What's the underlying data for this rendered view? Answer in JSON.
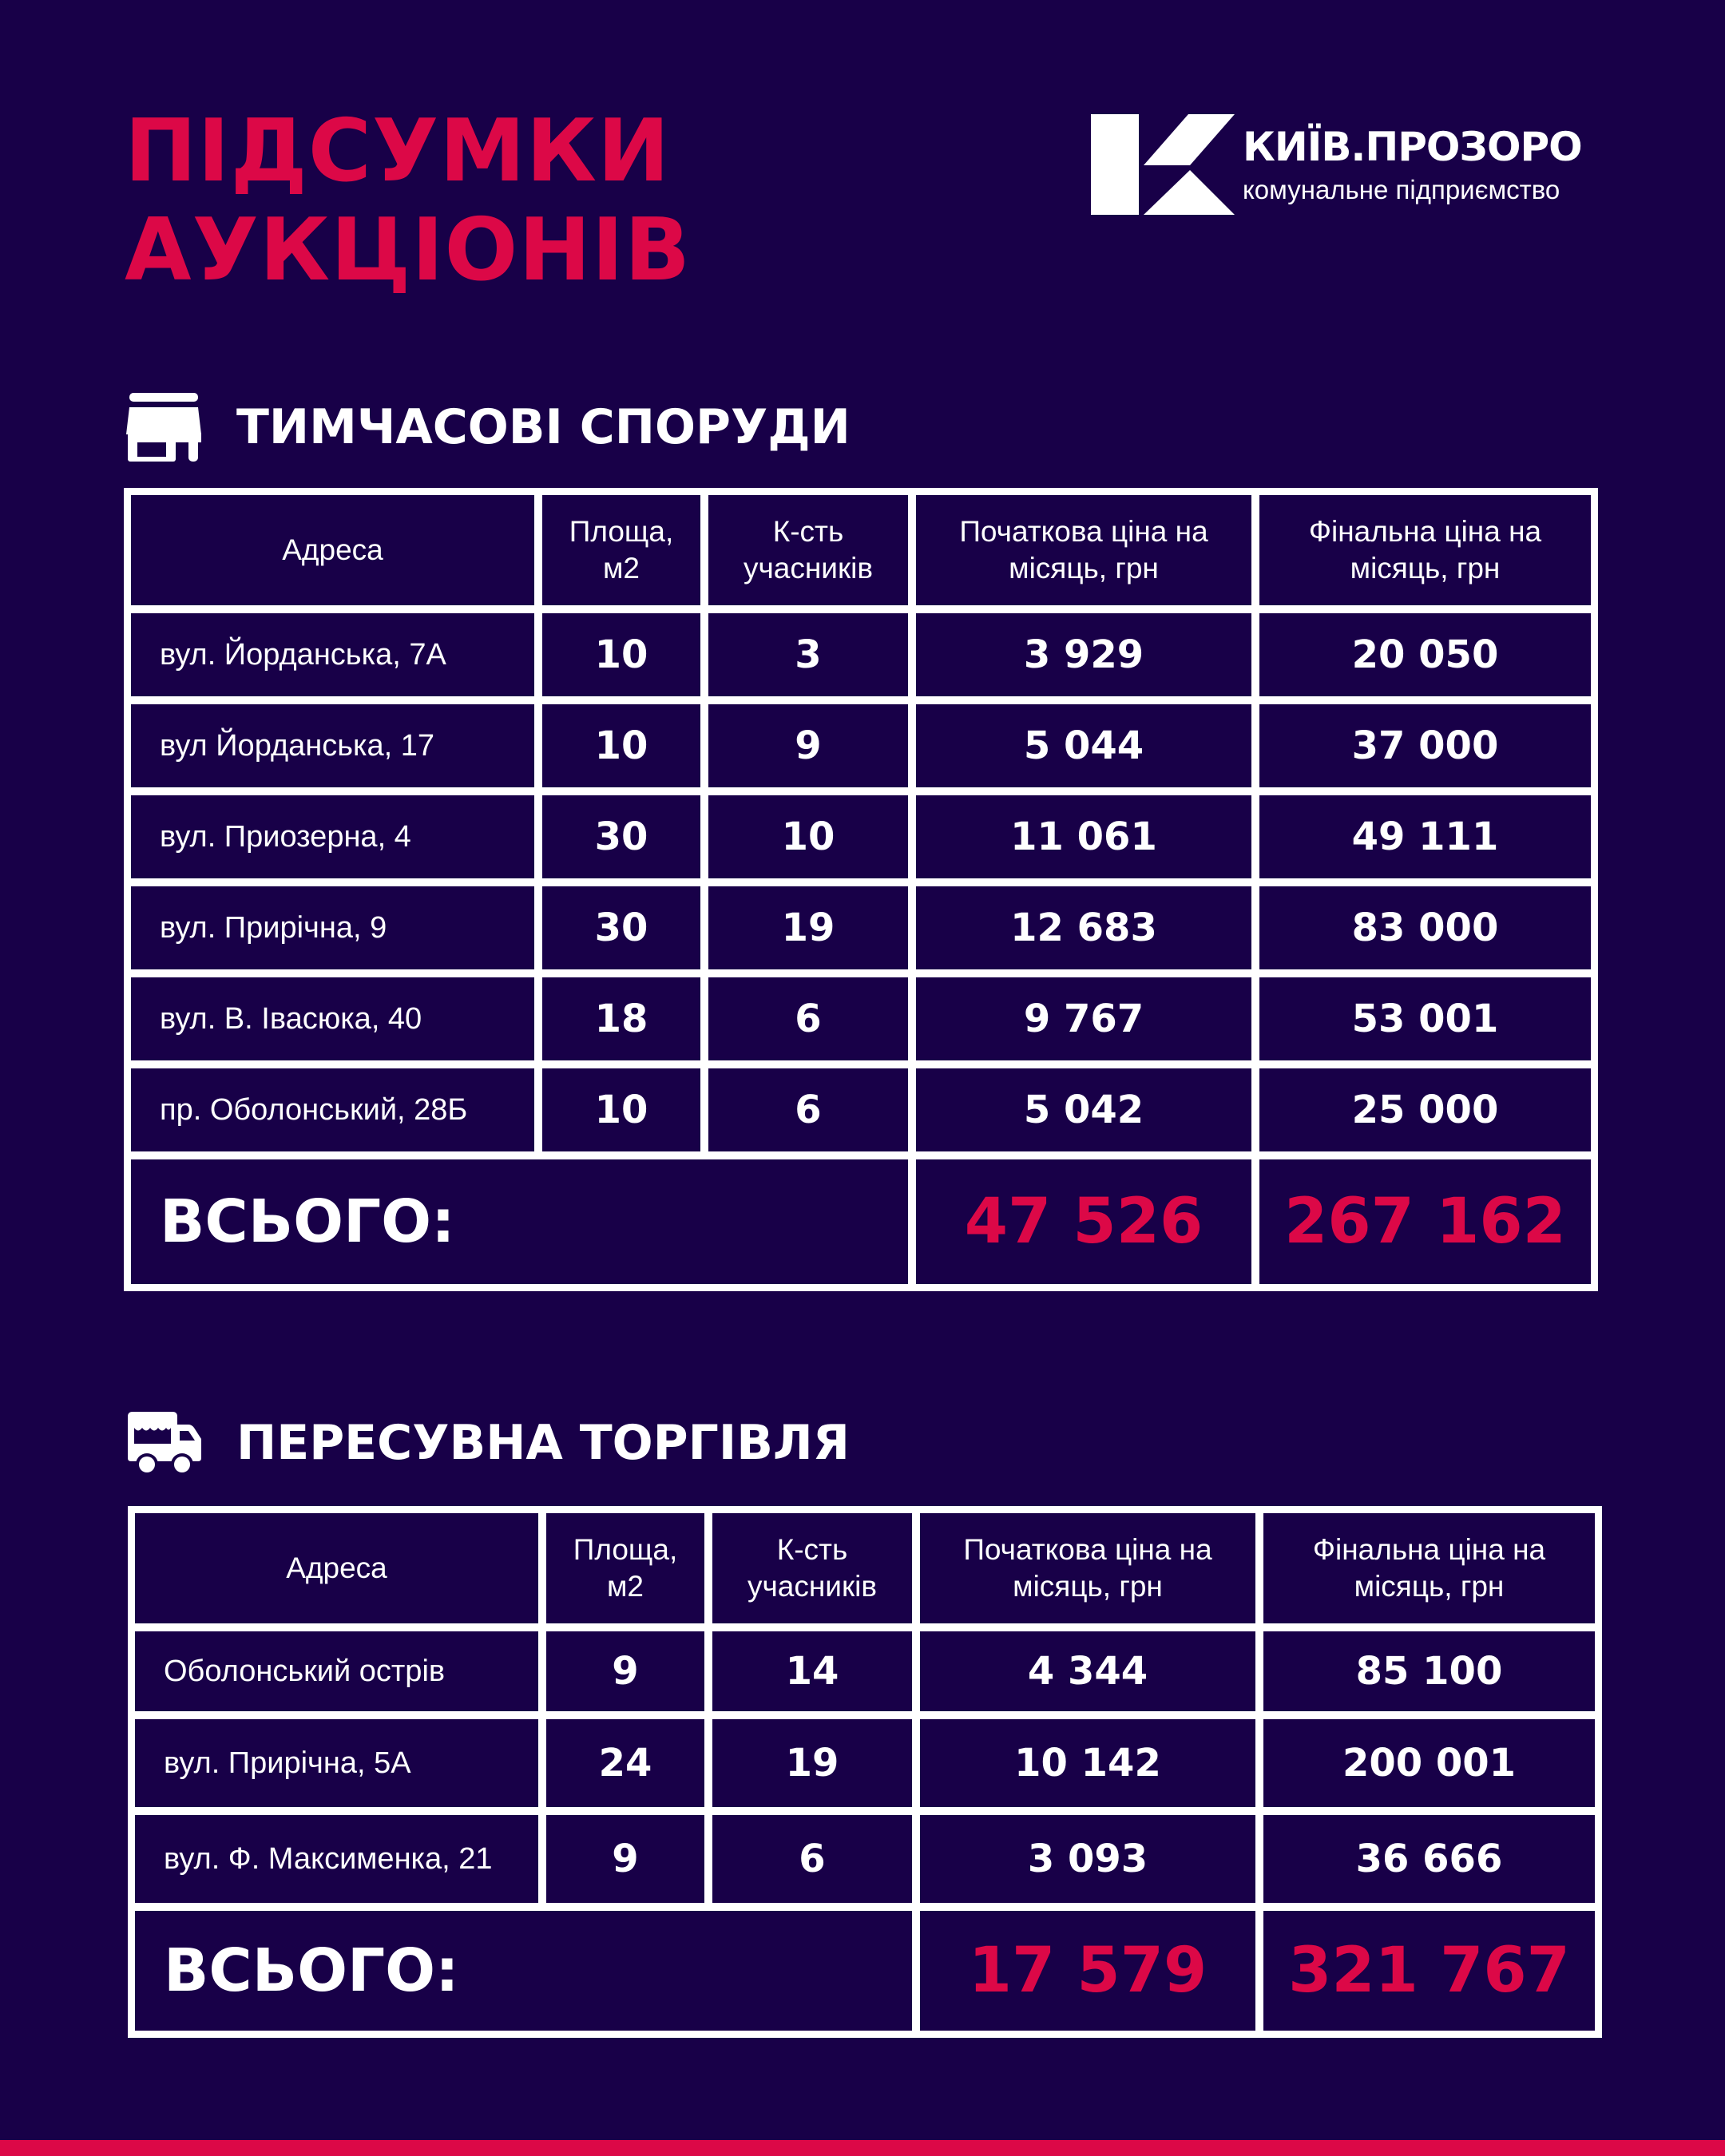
{
  "title": {
    "line1": "ПІДСУМКИ",
    "line2": "АУКЦІОНІВ"
  },
  "logo": {
    "name": "КИЇВ.ПРОЗОРО",
    "subtitle": "комунальне підприємство"
  },
  "colors": {
    "background": "#180048",
    "accent": "#dc0847",
    "text": "#ffffff"
  },
  "columns": [
    "Адреса",
    "Площа, м2",
    "К-сть учасників",
    "Початкова ціна на місяць, грн",
    "Фінальна ціна на місяць, грн"
  ],
  "sections": [
    {
      "heading": "ТИМЧАСОВІ СПОРУДИ",
      "icon": "kiosk-icon",
      "rows": [
        [
          "вул. Йорданська, 7А",
          "10",
          "3",
          "3 929",
          "20 050"
        ],
        [
          "вул Йорданська, 17",
          "10",
          "9",
          "5 044",
          "37 000"
        ],
        [
          "вул. Приозерна, 4",
          "30",
          "10",
          "11 061",
          "49 111"
        ],
        [
          "вул. Прирічна, 9",
          "30",
          "19",
          "12 683",
          "83 000"
        ],
        [
          "вул. В. Івасюка, 40",
          "18",
          "6",
          "9 767",
          "53 001"
        ],
        [
          "пр. Оболонський, 28Б",
          "10",
          "6",
          "5 042",
          "25 000"
        ]
      ],
      "total": {
        "label": "ВСЬОГО:",
        "start": "47 526",
        "final": "267 162"
      }
    },
    {
      "heading": "ПЕРЕСУВНА ТОРГІВЛЯ",
      "icon": "food-truck-icon",
      "rows": [
        [
          "Оболонський острів",
          "9",
          "14",
          "4 344",
          "85 100"
        ],
        [
          "вул. Прирічна, 5А",
          "24",
          "19",
          "10 142",
          "200 001"
        ],
        [
          "вул. Ф. Максименка, 21",
          "9",
          "6",
          "3 093",
          "36 666"
        ]
      ],
      "total": {
        "label": "ВСЬОГО:",
        "start": "17 579",
        "final": "321 767"
      }
    }
  ]
}
